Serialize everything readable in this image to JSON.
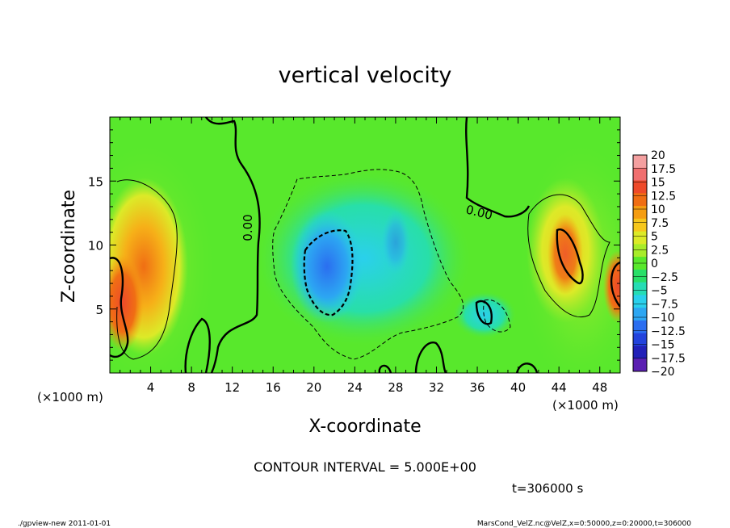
{
  "chart_data": {
    "type": "heatmap",
    "title": "vertical velocity",
    "xlabel": "X-coordinate",
    "ylabel": "Z-coordinate",
    "x_unit": "(×1000 m)",
    "y_unit": "(×1000 m)",
    "xlim": [
      0,
      50
    ],
    "ylim": [
      0,
      20
    ],
    "x_ticks": [
      "4",
      "8",
      "12",
      "16",
      "20",
      "24",
      "28",
      "32",
      "36",
      "40",
      "44",
      "48"
    ],
    "y_ticks": [
      "5",
      "10",
      "15"
    ],
    "contour_label_rotated": "0.00",
    "contour_label_right": "0.00",
    "contour_interval": "CONTOUR INTERVAL = 5.000E+00",
    "time_label": "t=306000 s",
    "colorbar": {
      "labels": [
        "20",
        "17.5",
        "15",
        "12.5",
        "10",
        "7.5",
        "5",
        "2.5",
        "0",
        "-2.5",
        "-5",
        "-7.5",
        "-10",
        "-12.5",
        "-15",
        "-17.5",
        "-20"
      ],
      "colors": [
        "#f4a0a0",
        "#f06f6f",
        "#ee4a2a",
        "#f06e14",
        "#f59d12",
        "#f6c71c",
        "#dcea28",
        "#a8ec2a",
        "#58e82c",
        "#28df68",
        "#26dcb4",
        "#2ad0ec",
        "#2ca6f2",
        "#2b6ef0",
        "#2343dc",
        "#2220b8",
        "#5b1fb2"
      ]
    },
    "grid": false,
    "legend": "colorbar-right"
  },
  "footer": {
    "left": "./gpview-new  2011-01-01",
    "right": "MarsCond_VelZ.nc@VelZ,x=0:50000,z=0:20000,t=306000"
  }
}
